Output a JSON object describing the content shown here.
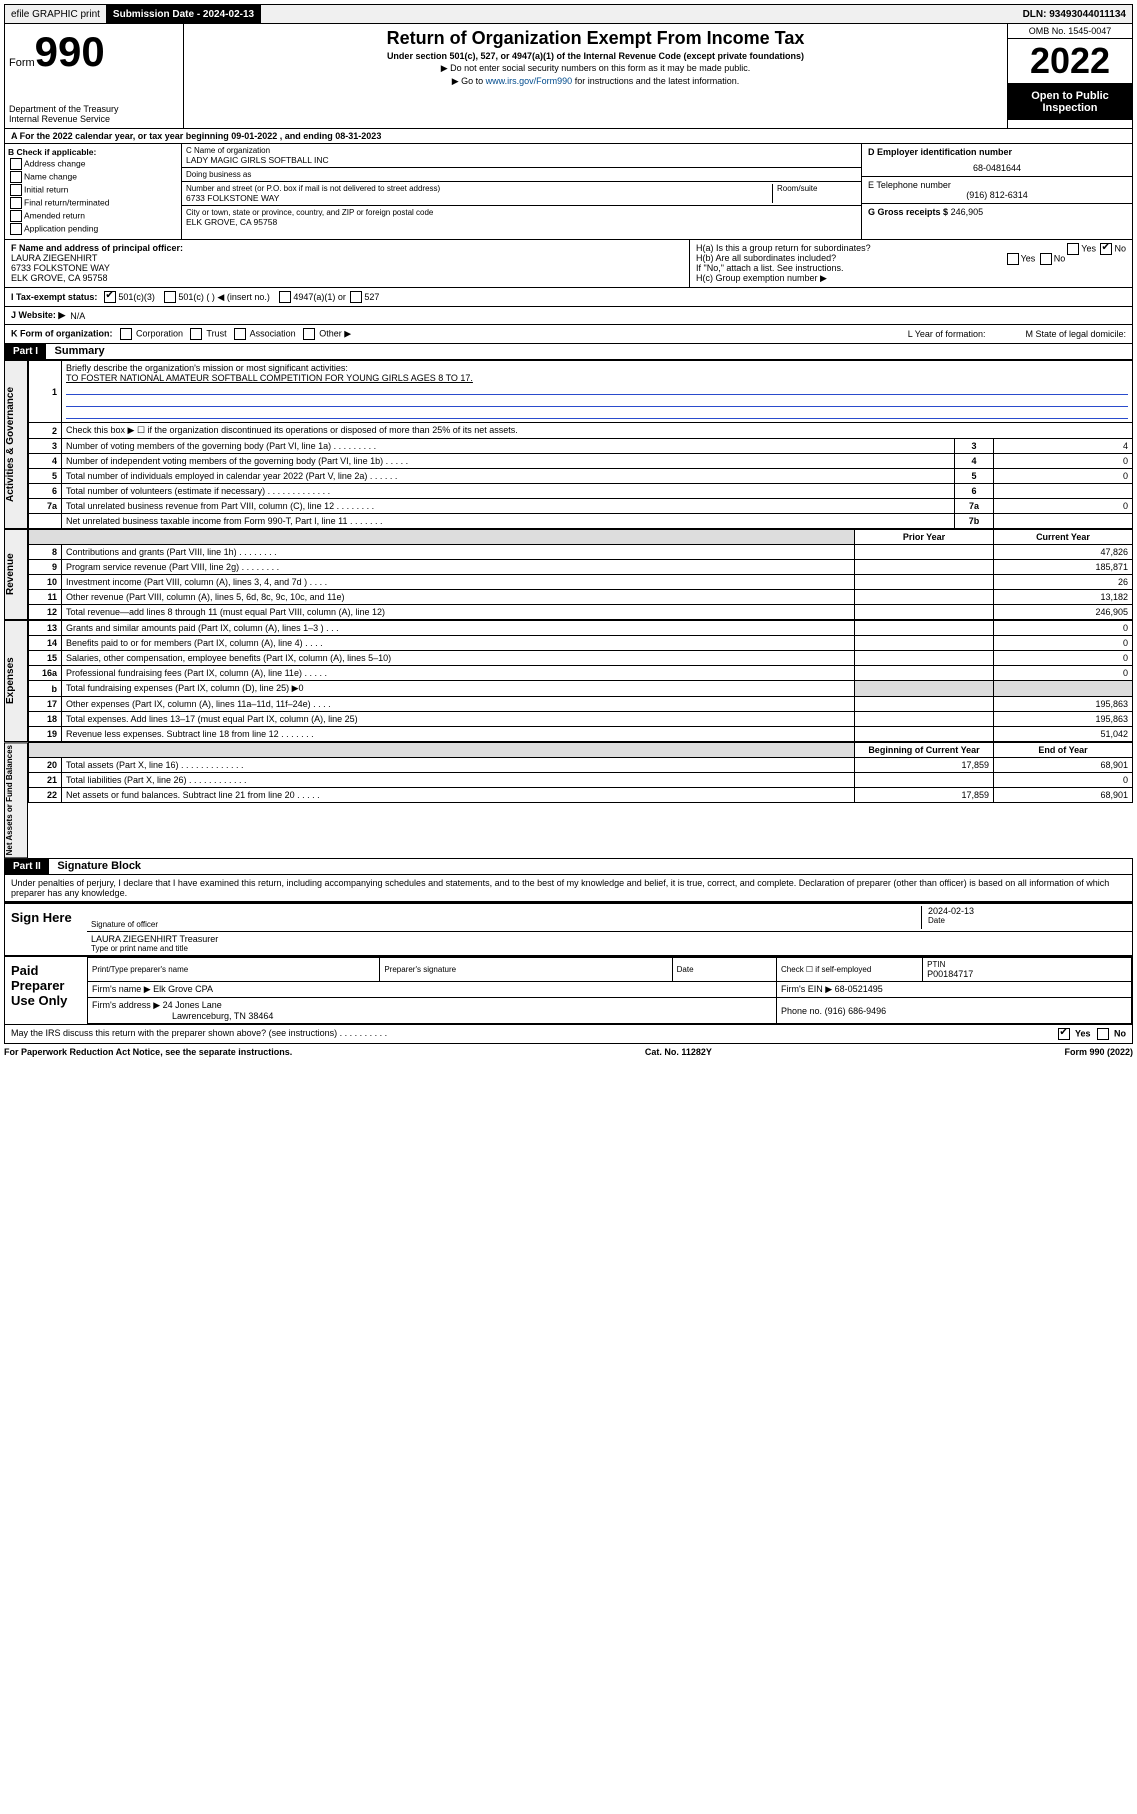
{
  "top": {
    "efile": "efile GRAPHIC print",
    "submission_label": "Submission Date - 2024-02-13",
    "dln": "DLN: 93493044011134"
  },
  "header": {
    "form_word": "Form",
    "form_num": "990",
    "dept": "Department of the Treasury",
    "irs": "Internal Revenue Service",
    "title": "Return of Organization Exempt From Income Tax",
    "subtitle": "Under section 501(c), 527, or 4947(a)(1) of the Internal Revenue Code (except private foundations)",
    "note1": "▶ Do not enter social security numbers on this form as it may be made public.",
    "note2_pre": "▶ Go to ",
    "note2_link": "www.irs.gov/Form990",
    "note2_post": " for instructions and the latest information.",
    "omb": "OMB No. 1545-0047",
    "year": "2022",
    "inspect": "Open to Public Inspection"
  },
  "row_a": "A For the 2022 calendar year, or tax year beginning 09-01-2022   , and ending 08-31-2023",
  "col_b": {
    "heading": "B Check if applicable:",
    "opts": [
      "Address change",
      "Name change",
      "Initial return",
      "Final return/terminated",
      "Amended return",
      "Application pending"
    ]
  },
  "col_c": {
    "c_label": "C Name of organization",
    "c_name": "LADY MAGIC GIRLS SOFTBALL INC",
    "dba_label": "Doing business as",
    "dba": "",
    "addr_label": "Number and street (or P.O. box if mail is not delivered to street address)",
    "room_label": "Room/suite",
    "addr": "6733 FOLKSTONE WAY",
    "city_label": "City or town, state or province, country, and ZIP or foreign postal code",
    "city": "ELK GROVE, CA  95758"
  },
  "col_de": {
    "d_label": "D Employer identification number",
    "d_val": "68-0481644",
    "e_label": "E Telephone number",
    "e_val": "(916) 812-6314",
    "g_label": "G Gross receipts $",
    "g_val": "246,905"
  },
  "block_f": {
    "f_label": "F Name and address of principal officer:",
    "f_name": "LAURA ZIEGENHIRT",
    "f_addr1": "6733 FOLKSTONE WAY",
    "f_addr2": "ELK GROVE, CA  95758",
    "ha": "H(a)  Is this a group return for subordinates?",
    "ha_yes": "Yes",
    "ha_no": "No",
    "hb": "H(b)  Are all subordinates included?",
    "hb_yes": "Yes",
    "hb_no": "No",
    "hb_note": "If \"No,\" attach a list. See instructions.",
    "hc": "H(c)  Group exemption number ▶"
  },
  "block_i": {
    "label": "I  Tax-exempt status:",
    "o1": "501(c)(3)",
    "o2": "501(c) (   ) ◀ (insert no.)",
    "o3": "4947(a)(1) or",
    "o4": "527"
  },
  "block_j": {
    "label": "J  Website: ▶",
    "val": "N/A"
  },
  "block_k": {
    "label": "K Form of organization:",
    "opts": [
      "Corporation",
      "Trust",
      "Association",
      "Other ▶"
    ],
    "l": "L Year of formation:",
    "m": "M State of legal domicile:"
  },
  "part1": {
    "header": "Part I",
    "title": "Summary",
    "line1_label": "Briefly describe the organization's mission or most significant activities:",
    "line1_val": "TO FOSTER NATIONAL AMATEUR SOFTBALL COMPETITION FOR YOUNG GIRLS AGES 8 TO 17.",
    "line2": "Check this box ▶ ☐  if the organization discontinued its operations or disposed of more than 25% of its net assets.",
    "tabs": [
      "Activities & Governance",
      "Revenue",
      "Expenses",
      "Net Assets or Fund Balances"
    ],
    "rows_gov": [
      {
        "n": "3",
        "t": "Number of voting members of the governing body (Part VI, line 1a)  .   .   .   .   .   .   .   .   .",
        "b": "3",
        "v": "4"
      },
      {
        "n": "4",
        "t": "Number of independent voting members of the governing body (Part VI, line 1b)  .   .   .   .   .",
        "b": "4",
        "v": "0"
      },
      {
        "n": "5",
        "t": "Total number of individuals employed in calendar year 2022 (Part V, line 2a)   .   .   .   .   .   .",
        "b": "5",
        "v": "0"
      },
      {
        "n": "6",
        "t": "Total number of volunteers (estimate if necessary)  .   .   .   .   .   .   .   .   .   .   .   .   .",
        "b": "6",
        "v": ""
      },
      {
        "n": "7a",
        "t": "Total unrelated business revenue from Part VIII, column (C), line 12   .   .   .   .   .   .   .   .",
        "b": "7a",
        "v": "0"
      },
      {
        "n": "",
        "t": "Net unrelated business taxable income from Form 990-T, Part I, line 11   .   .   .   .   .   .   .",
        "b": "7b",
        "v": ""
      }
    ],
    "col_head_prior": "Prior Year",
    "col_head_curr": "Current Year",
    "rows_rev": [
      {
        "n": "8",
        "t": "Contributions and grants (Part VIII, line 1h)   .   .   .   .   .   .   .   .",
        "p": "",
        "c": "47,826"
      },
      {
        "n": "9",
        "t": "Program service revenue (Part VIII, line 2g)   .   .   .   .   .   .   .   .",
        "p": "",
        "c": "185,871"
      },
      {
        "n": "10",
        "t": "Investment income (Part VIII, column (A), lines 3, 4, and 7d )   .   .   .   .",
        "p": "",
        "c": "26"
      },
      {
        "n": "11",
        "t": "Other revenue (Part VIII, column (A), lines 5, 6d, 8c, 9c, 10c, and 11e)",
        "p": "",
        "c": "13,182"
      },
      {
        "n": "12",
        "t": "Total revenue—add lines 8 through 11 (must equal Part VIII, column (A), line 12)",
        "p": "",
        "c": "246,905"
      }
    ],
    "rows_exp": [
      {
        "n": "13",
        "t": "Grants and similar amounts paid (Part IX, column (A), lines 1–3 )   .   .   .",
        "p": "",
        "c": "0"
      },
      {
        "n": "14",
        "t": "Benefits paid to or for members (Part IX, column (A), line 4)   .   .   .   .",
        "p": "",
        "c": "0"
      },
      {
        "n": "15",
        "t": "Salaries, other compensation, employee benefits (Part IX, column (A), lines 5–10)",
        "p": "",
        "c": "0"
      },
      {
        "n": "16a",
        "t": "Professional fundraising fees (Part IX, column (A), line 11e)   .   .   .   .   .",
        "p": "",
        "c": "0"
      },
      {
        "n": "b",
        "t": "Total fundraising expenses (Part IX, column (D), line 25) ▶0",
        "p": "shade",
        "c": "shade"
      },
      {
        "n": "17",
        "t": "Other expenses (Part IX, column (A), lines 11a–11d, 11f–24e)   .   .   .   .",
        "p": "",
        "c": "195,863"
      },
      {
        "n": "18",
        "t": "Total expenses. Add lines 13–17 (must equal Part IX, column (A), line 25)",
        "p": "",
        "c": "195,863"
      },
      {
        "n": "19",
        "t": "Revenue less expenses. Subtract line 18 from line 12   .   .   .   .   .   .   .",
        "p": "",
        "c": "51,042"
      }
    ],
    "col_head_beg": "Beginning of Current Year",
    "col_head_end": "End of Year",
    "rows_net": [
      {
        "n": "20",
        "t": "Total assets (Part X, line 16)   .   .   .   .   .   .   .   .   .   .   .   .   .",
        "p": "17,859",
        "c": "68,901"
      },
      {
        "n": "21",
        "t": "Total liabilities (Part X, line 26)   .   .   .   .   .   .   .   .   .   .   .   .",
        "p": "",
        "c": "0"
      },
      {
        "n": "22",
        "t": "Net assets or fund balances. Subtract line 21 from line 20   .   .   .   .   .",
        "p": "17,859",
        "c": "68,901"
      }
    ]
  },
  "part2": {
    "header": "Part II",
    "title": "Signature Block",
    "perjury": "Under penalties of perjury, I declare that I have examined this return, including accompanying schedules and statements, and to the best of my knowledge and belief, it is true, correct, and complete. Declaration of preparer (other than officer) is based on all information of which preparer has any knowledge.",
    "sign_here": "Sign Here",
    "sig_officer": "Signature of officer",
    "sig_date": "2024-02-13",
    "date_label": "Date",
    "officer_name": "LAURA ZIEGENHIRT Treasurer",
    "type_name": "Type or print name and title",
    "paid": "Paid Preparer Use Only",
    "pp_name_label": "Print/Type preparer's name",
    "pp_sig_label": "Preparer's signature",
    "pp_date_label": "Date",
    "pp_check": "Check ☐ if self-employed",
    "ptin_label": "PTIN",
    "ptin": "P00184717",
    "firm_name_label": "Firm's name   ▶",
    "firm_name": "Elk Grove CPA",
    "firm_ein_label": "Firm's EIN ▶",
    "firm_ein": "68-0521495",
    "firm_addr_label": "Firm's address ▶",
    "firm_addr1": "24 Jones Lane",
    "firm_addr2": "Lawrenceburg, TN  38464",
    "phone_label": "Phone no.",
    "phone": "(916) 686-9496",
    "may_irs": "May the IRS discuss this return with the preparer shown above? (see instructions)   .   .   .   .   .   .   .   .   .   .",
    "yes": "Yes",
    "no": "No"
  },
  "footer": {
    "left": "For Paperwork Reduction Act Notice, see the separate instructions.",
    "center": "Cat. No. 11282Y",
    "right": "Form 990 (2022)"
  }
}
